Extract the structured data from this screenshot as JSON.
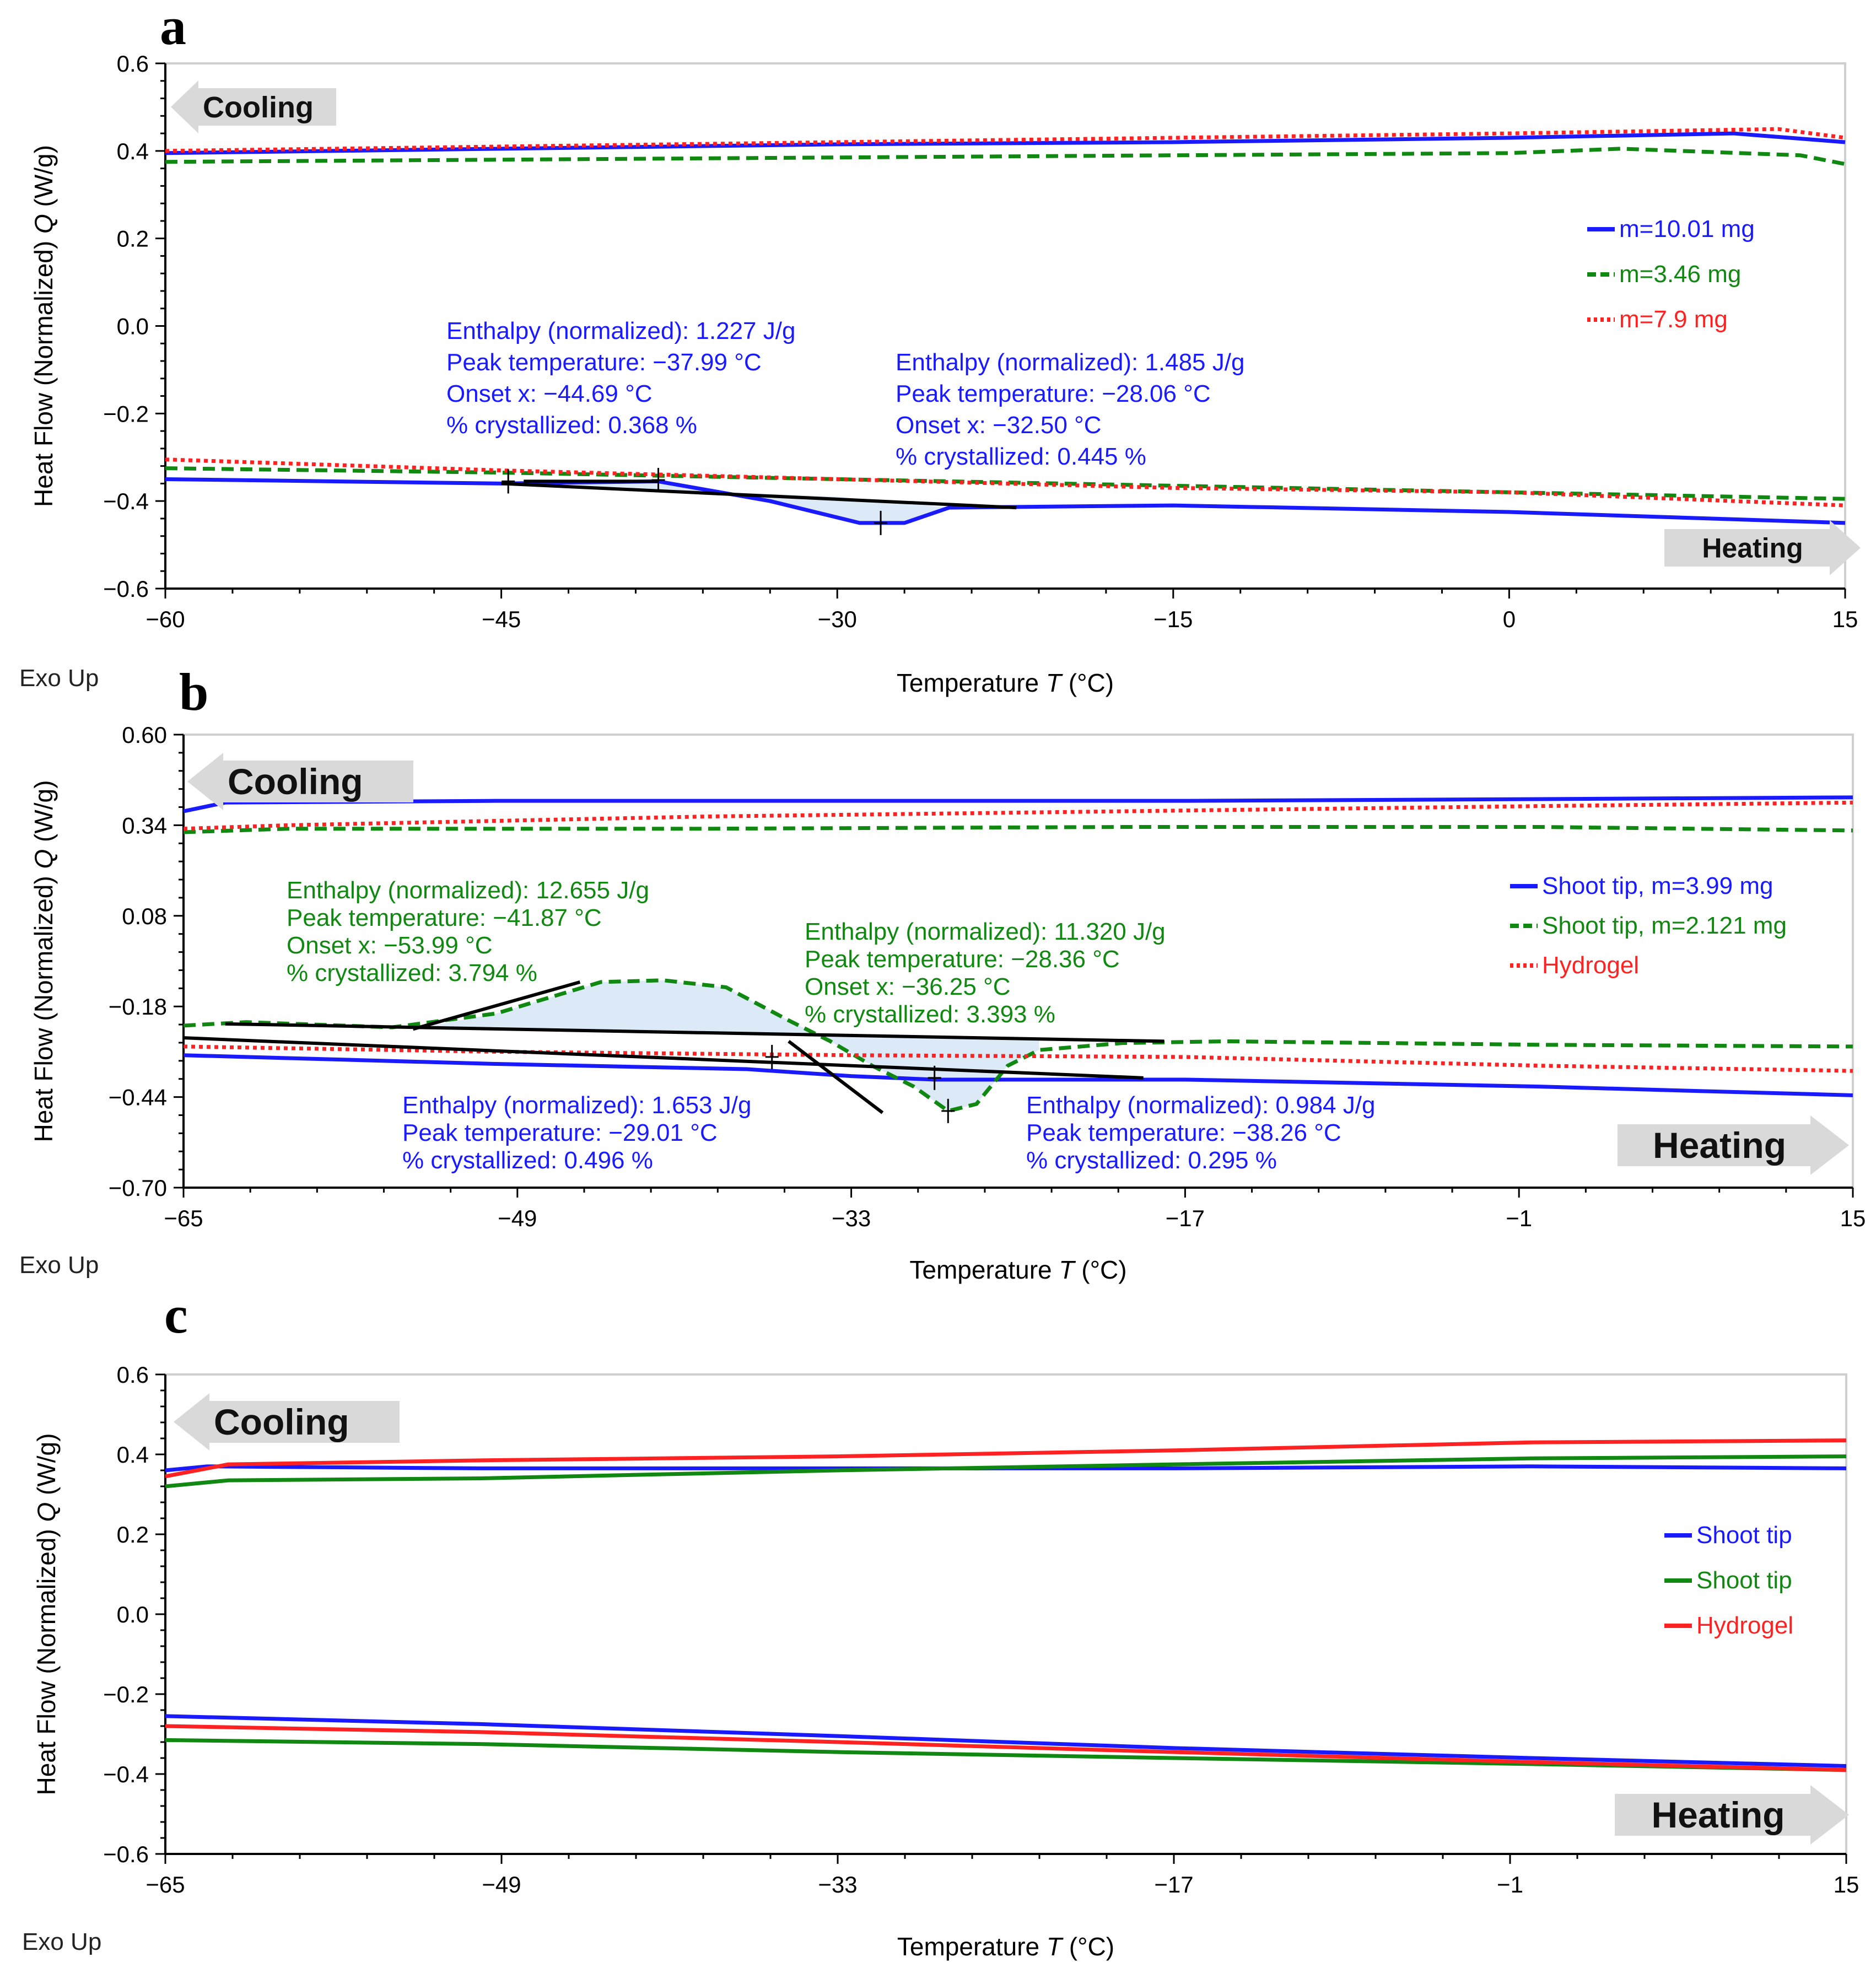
{
  "colors": {
    "blue": "#1a1aff",
    "green": "#118811",
    "red": "#ff2222",
    "peakFill": "#dce9f7",
    "arrow": "#d9d9d9"
  },
  "chart_data": [
    {
      "panel": "a",
      "type": "line",
      "xlabel": "Temperature",
      "xlabel_sym": "T",
      "xlabel_unit": "(°C)",
      "ylabel": "Heat Flow (Normalized)",
      "ylabel_sym": "Q",
      "ylabel_unit": "(W/g)",
      "exo_label": "Exo Up",
      "cooling_label": "Cooling",
      "heating_label": "Heating",
      "xlim": [
        -60,
        15
      ],
      "ylim": [
        -0.6,
        0.6
      ],
      "xticks": [
        -60,
        -45,
        -30,
        -15,
        0,
        15
      ],
      "xtick_labels": [
        "−60",
        "−45",
        "−30",
        "−15",
        "0",
        "15"
      ],
      "yticks": [
        0.6,
        0.4,
        0.2,
        0.0,
        -0.2,
        -0.4,
        -0.6
      ],
      "ytick_labels": [
        "0.6",
        "0.4",
        "0.2",
        "0.0",
        "−0.2",
        "−0.4",
        "−0.6"
      ],
      "series": [
        {
          "name": "m=10.01 mg",
          "color": "blue",
          "style": "solid",
          "upper": [
            [
              -60,
              0.395
            ],
            [
              -45,
              0.405
            ],
            [
              -30,
              0.415
            ],
            [
              -15,
              0.42
            ],
            [
              0,
              0.43
            ],
            [
              10,
              0.44
            ],
            [
              15,
              0.42
            ]
          ],
          "lower": [
            [
              -60,
              -0.35
            ],
            [
              -45,
              -0.36
            ],
            [
              -38,
              -0.355
            ],
            [
              -33,
              -0.4
            ],
            [
              -29,
              -0.45
            ],
            [
              -27,
              -0.45
            ],
            [
              -25,
              -0.415
            ],
            [
              -15,
              -0.41
            ],
            [
              0,
              -0.425
            ],
            [
              15,
              -0.45
            ]
          ]
        },
        {
          "name": "m=3.46 mg",
          "color": "green",
          "style": "dashed",
          "upper": [
            [
              -60,
              0.375
            ],
            [
              -45,
              0.38
            ],
            [
              -30,
              0.385
            ],
            [
              -15,
              0.39
            ],
            [
              0,
              0.395
            ],
            [
              5,
              0.405
            ],
            [
              13,
              0.39
            ],
            [
              15,
              0.37
            ]
          ],
          "lower": [
            [
              -60,
              -0.325
            ],
            [
              -45,
              -0.335
            ],
            [
              -30,
              -0.35
            ],
            [
              -15,
              -0.365
            ],
            [
              0,
              -0.38
            ],
            [
              15,
              -0.395
            ]
          ]
        },
        {
          "name": "m=7.9 mg",
          "color": "red",
          "style": "dotted",
          "upper": [
            [
              -60,
              0.4
            ],
            [
              -45,
              0.41
            ],
            [
              -30,
              0.42
            ],
            [
              -15,
              0.43
            ],
            [
              0,
              0.44
            ],
            [
              12,
              0.45
            ],
            [
              15,
              0.43
            ]
          ],
          "lower": [
            [
              -60,
              -0.305
            ],
            [
              -45,
              -0.33
            ],
            [
              -30,
              -0.35
            ],
            [
              -15,
              -0.37
            ],
            [
              0,
              -0.38
            ],
            [
              15,
              -0.41
            ]
          ]
        }
      ],
      "baselines": [
        [
          [
            -45,
            -0.36
          ],
          [
            -22,
            -0.415
          ]
        ],
        [
          [
            -44,
            -0.355
          ],
          [
            -38,
            -0.355
          ]
        ]
      ],
      "peak_fill": [
        [
          -44.7,
          -0.355
        ],
        [
          -38,
          -0.352
        ],
        [
          -33,
          -0.4
        ],
        [
          -29,
          -0.45
        ],
        [
          -27,
          -0.45
        ],
        [
          -25,
          -0.415
        ],
        [
          -30,
          -0.39
        ],
        [
          -38,
          -0.374
        ]
      ],
      "markers": [
        [
          -44.69,
          -0.355
        ],
        [
          -37.99,
          -0.352
        ],
        [
          -28.06,
          -0.45
        ]
      ],
      "annotations": [
        {
          "color": "blue",
          "lines": [
            "Enthalpy (normalized): 1.227 J/g",
            "Peak temperature: −37.99 °C",
            "Onset x: −44.69 °C",
            "% crystallized: 0.368 %"
          ]
        },
        {
          "color": "blue",
          "lines": [
            "Enthalpy (normalized): 1.485 J/g",
            "Peak temperature: −28.06 °C",
            "Onset x: −32.50 °C",
            "% crystallized: 0.445 %"
          ]
        }
      ],
      "legend_position": "right"
    },
    {
      "panel": "b",
      "type": "line",
      "xlabel": "Temperature",
      "xlabel_sym": "T",
      "xlabel_unit": "(°C)",
      "ylabel": "Heat Flow (Normalized)",
      "ylabel_sym": "Q",
      "ylabel_unit": "(W/g)",
      "exo_label": "Exo Up",
      "cooling_label": "Cooling",
      "heating_label": "Heating",
      "xlim": [
        -65,
        15
      ],
      "ylim": [
        -0.7,
        0.6
      ],
      "xticks": [
        -65,
        -49,
        -33,
        -17,
        -1,
        15
      ],
      "xtick_labels": [
        "−65",
        "−49",
        "−33",
        "−17",
        "−1",
        "15"
      ],
      "yticks": [
        0.6,
        0.34,
        0.08,
        -0.18,
        -0.44,
        -0.7
      ],
      "ytick_labels": [
        "0.60",
        "0.34",
        "0.08",
        "−0.18",
        "−0.44",
        "−0.70"
      ],
      "series": [
        {
          "name": "Shoot tip, m=3.99 mg",
          "color": "blue",
          "style": "solid",
          "upper": [
            [
              -65,
              0.38
            ],
            [
              -63,
              0.405
            ],
            [
              -50,
              0.41
            ],
            [
              -33,
              0.41
            ],
            [
              -17,
              0.41
            ],
            [
              0,
              0.415
            ],
            [
              15,
              0.42
            ]
          ],
          "lower": [
            [
              -65,
              -0.32
            ],
            [
              -50,
              -0.345
            ],
            [
              -38,
              -0.36
            ],
            [
              -33,
              -0.38
            ],
            [
              -29,
              -0.39
            ],
            [
              -17,
              -0.39
            ],
            [
              0,
              -0.41
            ],
            [
              15,
              -0.435
            ]
          ]
        },
        {
          "name": "Shoot tip, m=2.121 mg",
          "color": "green",
          "style": "dashed",
          "upper": [
            [
              -65,
              0.32
            ],
            [
              -60,
              0.33
            ],
            [
              -40,
              0.33
            ],
            [
              -20,
              0.335
            ],
            [
              0,
              0.335
            ],
            [
              15,
              0.325
            ]
          ],
          "lower": [
            [
              -65,
              -0.235
            ],
            [
              -62,
              -0.225
            ],
            [
              -55,
              -0.24
            ],
            [
              -50,
              -0.2
            ],
            [
              -45,
              -0.11
            ],
            [
              -42,
              -0.105
            ],
            [
              -39,
              -0.125
            ],
            [
              -36,
              -0.22
            ],
            [
              -34,
              -0.28
            ],
            [
              -32,
              -0.35
            ],
            [
              -30,
              -0.41
            ],
            [
              -28.36,
              -0.48
            ],
            [
              -27,
              -0.46
            ],
            [
              -25.5,
              -0.35
            ],
            [
              -24,
              -0.305
            ],
            [
              -20,
              -0.285
            ],
            [
              -15,
              -0.28
            ],
            [
              0,
              -0.29
            ],
            [
              15,
              -0.295
            ]
          ]
        },
        {
          "name": "Hydrogel",
          "color": "red",
          "style": "dotted",
          "upper": [
            [
              -65,
              0.33
            ],
            [
              -60,
              0.34
            ],
            [
              -40,
              0.365
            ],
            [
              -20,
              0.38
            ],
            [
              0,
              0.395
            ],
            [
              15,
              0.405
            ]
          ],
          "lower": [
            [
              -65,
              -0.295
            ],
            [
              -50,
              -0.31
            ],
            [
              -33,
              -0.32
            ],
            [
              -17,
              -0.325
            ],
            [
              0,
              -0.35
            ],
            [
              15,
              -0.365
            ]
          ]
        }
      ],
      "baselines": [
        [
          [
            -63,
            -0.23
          ],
          [
            -18,
            -0.28
          ]
        ],
        [
          [
            -65,
            -0.27
          ],
          [
            -19,
            -0.385
          ]
        ],
        [
          [
            -54,
            -0.245
          ],
          [
            -46,
            -0.11
          ]
        ],
        [
          [
            -36,
            -0.28
          ],
          [
            -31.5,
            -0.485
          ]
        ]
      ],
      "peak_fill": [
        [
          -54,
          -0.245
        ],
        [
          -50,
          -0.2
        ],
        [
          -45,
          -0.11
        ],
        [
          -42,
          -0.105
        ],
        [
          -39,
          -0.125
        ],
        [
          -36,
          -0.22
        ],
        [
          -34,
          -0.28
        ],
        [
          -32,
          -0.35
        ],
        [
          -30,
          -0.41
        ],
        [
          -28.36,
          -0.48
        ],
        [
          -27,
          -0.46
        ],
        [
          -25.5,
          -0.35
        ],
        [
          -24,
          -0.305
        ],
        [
          -24,
          -0.275
        ],
        [
          -40,
          -0.26
        ],
        [
          -54,
          -0.245
        ]
      ],
      "markers": [
        [
          -36.8,
          -0.325
        ],
        [
          -29.01,
          -0.385
        ],
        [
          -28.36,
          -0.48
        ]
      ],
      "annotations": [
        {
          "color": "green",
          "lines": [
            "Enthalpy (normalized): 12.655 J/g",
            "Peak temperature: −41.87 °C",
            "Onset x: −53.99 °C",
            "% crystallized: 3.794 %"
          ]
        },
        {
          "color": "green",
          "lines": [
            "Enthalpy (normalized): 11.320 J/g",
            "Peak temperature: −28.36 °C",
            "Onset x: −36.25 °C",
            "% crystallized: 3.393 %"
          ]
        },
        {
          "color": "blue",
          "lines": [
            "Enthalpy (normalized): 1.653   J/g",
            "Peak temperature: −29.01 °C",
            "% crystallized: 0.496 %"
          ]
        },
        {
          "color": "blue",
          "lines": [
            "Enthalpy (normalized): 0.984 J/g",
            "Peak temperature: −38.26 °C",
            "% crystallized: 0.295 %"
          ]
        }
      ],
      "legend_position": "right"
    },
    {
      "panel": "c",
      "type": "line",
      "xlabel": "Temperature",
      "xlabel_sym": "T",
      "xlabel_unit": "(°C)",
      "ylabel": "Heat Flow (Normalized)",
      "ylabel_sym": "Q",
      "ylabel_unit": "(W/g)",
      "exo_label": "Exo Up",
      "cooling_label": "Cooling",
      "heating_label": "Heating",
      "xlim": [
        -65,
        15
      ],
      "ylim": [
        -0.6,
        0.6
      ],
      "xticks": [
        -65,
        -49,
        -33,
        -17,
        -1,
        15
      ],
      "xtick_labels": [
        "−65",
        "−49",
        "−33",
        "−17",
        "−1",
        "15"
      ],
      "yticks": [
        0.6,
        0.4,
        0.2,
        0.0,
        -0.2,
        -0.4,
        -0.6
      ],
      "ytick_labels": [
        "0.6",
        "0.4",
        "0.2",
        "0.0",
        "−0.2",
        "−0.4",
        "−0.6"
      ],
      "series": [
        {
          "name": "Shoot tip",
          "color": "blue",
          "style": "solid",
          "upper": [
            [
              -65,
              0.36
            ],
            [
              -63,
              0.37
            ],
            [
              -50,
              0.365
            ],
            [
              -33,
              0.365
            ],
            [
              -17,
              0.365
            ],
            [
              0,
              0.37
            ],
            [
              15,
              0.365
            ]
          ],
          "lower": [
            [
              -65,
              -0.255
            ],
            [
              -50,
              -0.275
            ],
            [
              -33,
              -0.305
            ],
            [
              -17,
              -0.335
            ],
            [
              0,
              -0.36
            ],
            [
              15,
              -0.38
            ]
          ]
        },
        {
          "name": "Shoot tip",
          "color": "green",
          "style": "solid",
          "upper": [
            [
              -65,
              0.32
            ],
            [
              -62,
              0.335
            ],
            [
              -50,
              0.34
            ],
            [
              -33,
              0.36
            ],
            [
              -17,
              0.375
            ],
            [
              0,
              0.39
            ],
            [
              15,
              0.395
            ]
          ],
          "lower": [
            [
              -65,
              -0.315
            ],
            [
              -50,
              -0.325
            ],
            [
              -33,
              -0.345
            ],
            [
              -17,
              -0.36
            ],
            [
              0,
              -0.375
            ],
            [
              15,
              -0.39
            ]
          ]
        },
        {
          "name": "Hydrogel",
          "color": "red",
          "style": "solid",
          "upper": [
            [
              -65,
              0.345
            ],
            [
              -62,
              0.375
            ],
            [
              -50,
              0.385
            ],
            [
              -33,
              0.395
            ],
            [
              -17,
              0.41
            ],
            [
              0,
              0.43
            ],
            [
              15,
              0.435
            ]
          ],
          "lower": [
            [
              -65,
              -0.28
            ],
            [
              -50,
              -0.295
            ],
            [
              -33,
              -0.32
            ],
            [
              -17,
              -0.345
            ],
            [
              0,
              -0.37
            ],
            [
              15,
              -0.39
            ]
          ]
        }
      ],
      "baselines": [],
      "peak_fill": [],
      "markers": [],
      "annotations": [],
      "legend_position": "right"
    }
  ]
}
